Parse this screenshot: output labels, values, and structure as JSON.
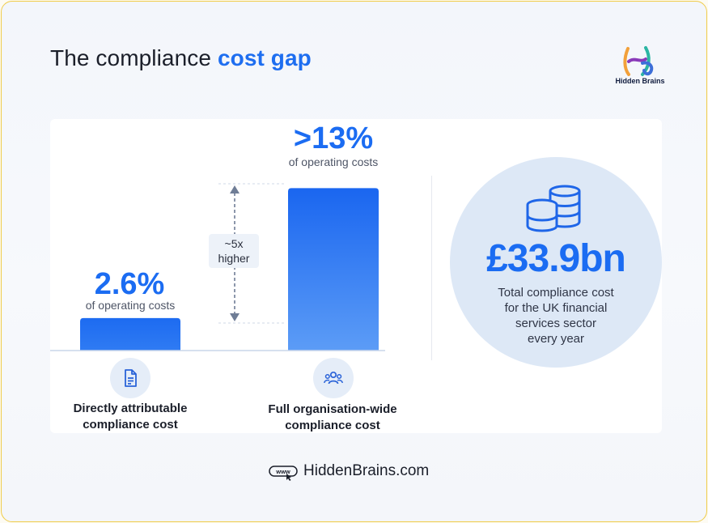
{
  "title": {
    "lead": "The compliance",
    "accent": "cost gap"
  },
  "brand": {
    "name": "Hidden Brains",
    "logo_icon": "hb-logo-icon"
  },
  "chart_data": {
    "type": "bar",
    "categories": [
      "Directly attributable compliance cost",
      "Full organisation-wide compliance cost"
    ],
    "values": [
      2.6,
      13
    ],
    "value_labels": [
      "2.6%",
      ">13%"
    ],
    "value_sublabels": [
      "of operating costs",
      "of operating costs"
    ],
    "unit": "% of operating costs",
    "ylim": [
      0,
      14
    ],
    "grid": false,
    "comparison": [
      "~5x",
      "higher"
    ],
    "category_lines": [
      [
        "Directly attributable",
        "compliance cost"
      ],
      [
        "Full organisation-wide",
        "compliance cost"
      ]
    ],
    "category_icons": [
      "document-icon",
      "people-group-icon"
    ],
    "colors": {
      "bar_top": "#1a66f0",
      "bar_bottom": "#5c9cf6",
      "value_text": "#1b6cf2"
    }
  },
  "stat": {
    "value": "£33.9bn",
    "description": [
      "Total compliance cost",
      "for the UK financial",
      "services sector",
      "every year"
    ],
    "icon": "coin-stacks-icon"
  },
  "footer": {
    "icon": "www-cursor-icon",
    "text": "HiddenBrains.com"
  }
}
